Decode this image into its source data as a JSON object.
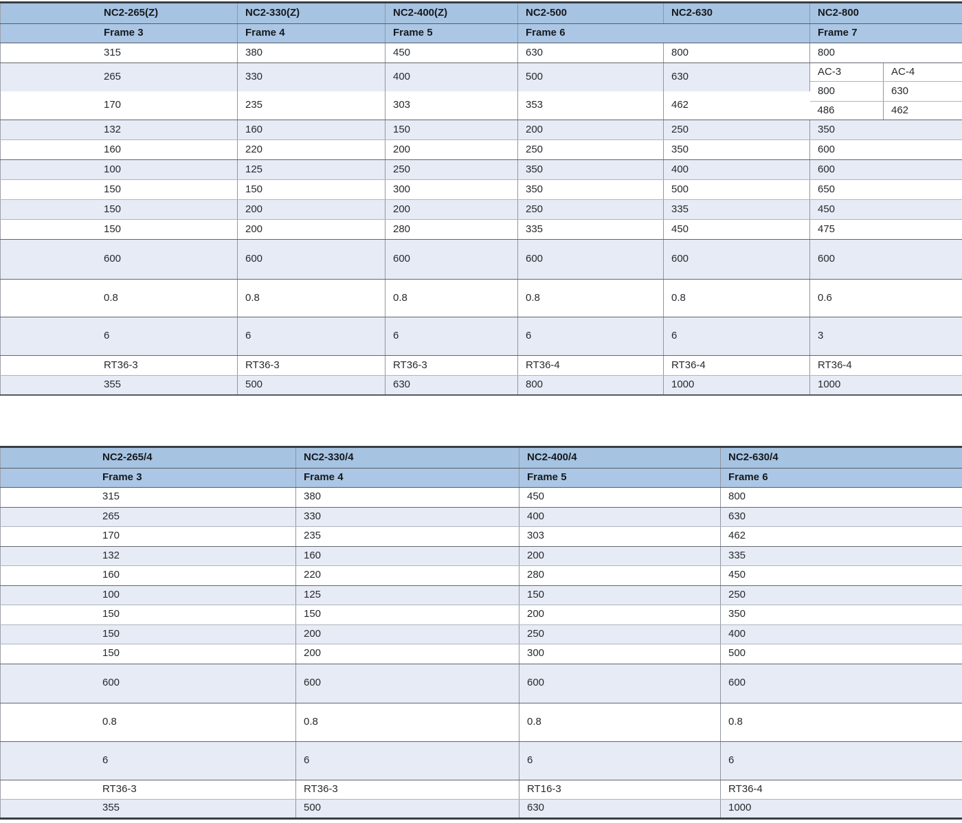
{
  "colors": {
    "header_blue": "#a6c3e2",
    "frame_blue": "#abc7e5",
    "stripe_blue": "#e7ebf5",
    "white": "#ffffff",
    "text": "#26292d",
    "header_text": "#17191d",
    "line_strong": "#61666e",
    "line_light": "#adb4bf",
    "table_frame": "#383d44"
  },
  "table1": {
    "models": [
      "NC2-265(Z)",
      "NC2-330(Z)",
      "NC2-400(Z)",
      "NC2-500",
      "NC2-630",
      "NC2-800"
    ],
    "frames": [
      {
        "label": "Frame 3",
        "span": 1
      },
      {
        "label": "Frame 4",
        "span": 1
      },
      {
        "label": "Frame 5",
        "span": 1
      },
      {
        "label": "Frame 6",
        "span": 2
      },
      {
        "label": "Frame 7",
        "span": 2
      }
    ],
    "ith_row": [
      "315",
      "380",
      "450",
      "630",
      "800",
      "800"
    ],
    "block": {
      "upper": [
        "265",
        "330",
        "400",
        "500",
        "630"
      ],
      "lower": [
        "170",
        "235",
        "303",
        "353",
        "462"
      ],
      "sub_headers": [
        "AC-3",
        "AC-4"
      ],
      "sub_mid": [
        "800",
        "630"
      ],
      "sub_bottom": [
        "486",
        "462"
      ]
    },
    "rows": [
      [
        "132",
        "160",
        "150",
        "200",
        "250",
        "350"
      ],
      [
        "160",
        "220",
        "200",
        "250",
        "350",
        "600"
      ],
      [
        "100",
        "125",
        "250",
        "350",
        "400",
        "600"
      ],
      [
        "150",
        "150",
        "300",
        "350",
        "500",
        "650"
      ],
      [
        "150",
        "200",
        "200",
        "250",
        "335",
        "450"
      ],
      [
        "150",
        "200",
        "280",
        "335",
        "450",
        "475"
      ]
    ],
    "tall_rows": [
      [
        "600",
        "600",
        "600",
        "600",
        "600",
        "600"
      ],
      [
        "0.8",
        "0.8",
        "0.8",
        "0.8",
        "0.8",
        "0.6"
      ],
      [
        "6",
        "6",
        "6",
        "6",
        "6",
        "3"
      ]
    ],
    "fuse_row": [
      "RT36-3",
      "RT36-3",
      "RT36-3",
      "RT36-4",
      "RT36-4",
      "RT36-4"
    ],
    "last_row": [
      "355",
      "500",
      "630",
      "800",
      "1000",
      "1000"
    ]
  },
  "table2": {
    "models": [
      "NC2-265/4",
      "NC2-330/4",
      "NC2-400/4",
      "NC2-630/4"
    ],
    "frames": [
      "Frame 3",
      "Frame 4",
      "Frame 5",
      "Frame 6"
    ],
    "rows": [
      [
        "315",
        "380",
        "450",
        "800"
      ],
      [
        "265",
        "330",
        "400",
        "630"
      ],
      [
        "170",
        "235",
        "303",
        "462"
      ],
      [
        "132",
        "160",
        "200",
        "335"
      ],
      [
        "160",
        "220",
        "280",
        "450"
      ],
      [
        "100",
        "125",
        "150",
        "250"
      ],
      [
        "150",
        "150",
        "200",
        "350"
      ],
      [
        "150",
        "200",
        "250",
        "400"
      ],
      [
        "150",
        "200",
        "300",
        "500"
      ]
    ],
    "tall_rows": [
      [
        "600",
        "600",
        "600",
        "600"
      ],
      [
        "0.8",
        "0.8",
        "0.8",
        "0.8"
      ],
      [
        "6",
        "6",
        "6",
        "6"
      ]
    ],
    "fuse_row": [
      "RT36-3",
      "RT36-3",
      "RT16-3",
      "RT36-4"
    ],
    "last_row": [
      "355",
      "500",
      "630",
      "1000"
    ]
  }
}
